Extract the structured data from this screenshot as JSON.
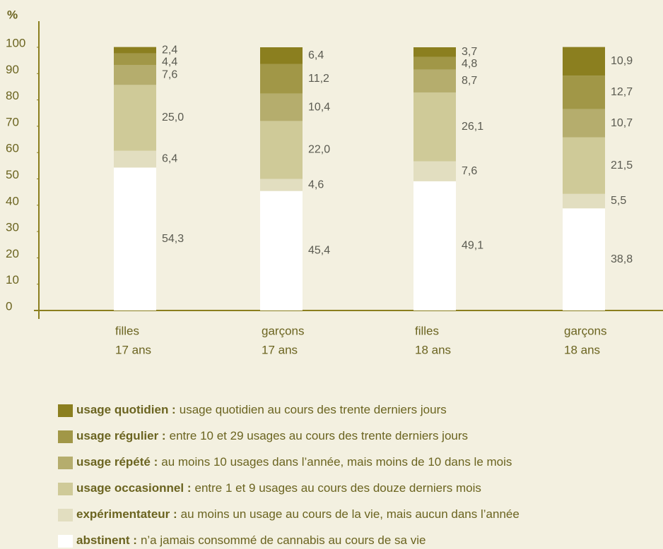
{
  "chart_data": {
    "type": "stacked_bar",
    "ylabel": "%",
    "categories": [
      [
        "filles",
        "17 ans"
      ],
      [
        "garçons",
        "17 ans"
      ],
      [
        "filles",
        "18 ans"
      ],
      [
        "garçons",
        "18 ans"
      ]
    ],
    "ylim": [
      0,
      100
    ],
    "yticks": [
      0,
      10,
      20,
      30,
      40,
      50,
      60,
      70,
      80,
      90,
      100
    ],
    "series": [
      {
        "name": "usage quotidien :",
        "description": "usage quotidien au cours des trente derniers jours",
        "color": "#8b7f1f",
        "values": [
          2.4,
          6.4,
          3.7,
          10.9
        ],
        "value_labels": [
          "2,4",
          "6,4",
          "3,7",
          "10,9"
        ]
      },
      {
        "name": "usage régulier :",
        "description": "entre 10 et 29 usages au cours des trente derniers jours",
        "color": "#a19747",
        "values": [
          4.4,
          11.2,
          4.8,
          12.7
        ],
        "value_labels": [
          "4,4",
          "11,2",
          "4,8",
          "12,7"
        ]
      },
      {
        "name": "usage répété :",
        "description": "au moins 10 usages dans l’année, mais moins de 10 dans le mois",
        "color": "#b5ad6d",
        "values": [
          7.6,
          10.4,
          8.7,
          10.7
        ],
        "value_labels": [
          "7,6",
          "10,4",
          "8,7",
          "10,7"
        ]
      },
      {
        "name": "usage occasionnel :",
        "description": "entre 1 et 9 usages au cours des douze derniers mois",
        "color": "#cfca98",
        "values": [
          25.0,
          22.0,
          26.1,
          21.5
        ],
        "value_labels": [
          "25,0",
          "22,0",
          "26,1",
          "21,5"
        ]
      },
      {
        "name": "expérimentateur :",
        "description": "au moins un usage au cours de la vie, mais aucun dans l’année",
        "color": "#e2dec0",
        "values": [
          6.4,
          4.6,
          7.6,
          5.5
        ],
        "value_labels": [
          "6,4",
          "4,6",
          "7,6",
          "5,5"
        ]
      },
      {
        "name": "abstinent :",
        "description": "n’a jamais consommé de cannabis au cours de sa vie",
        "color": "#ffffff",
        "values": [
          54.3,
          45.4,
          49.1,
          38.8
        ],
        "value_labels": [
          "54,3",
          "45,4",
          "49,1",
          "38,8"
        ]
      }
    ]
  }
}
